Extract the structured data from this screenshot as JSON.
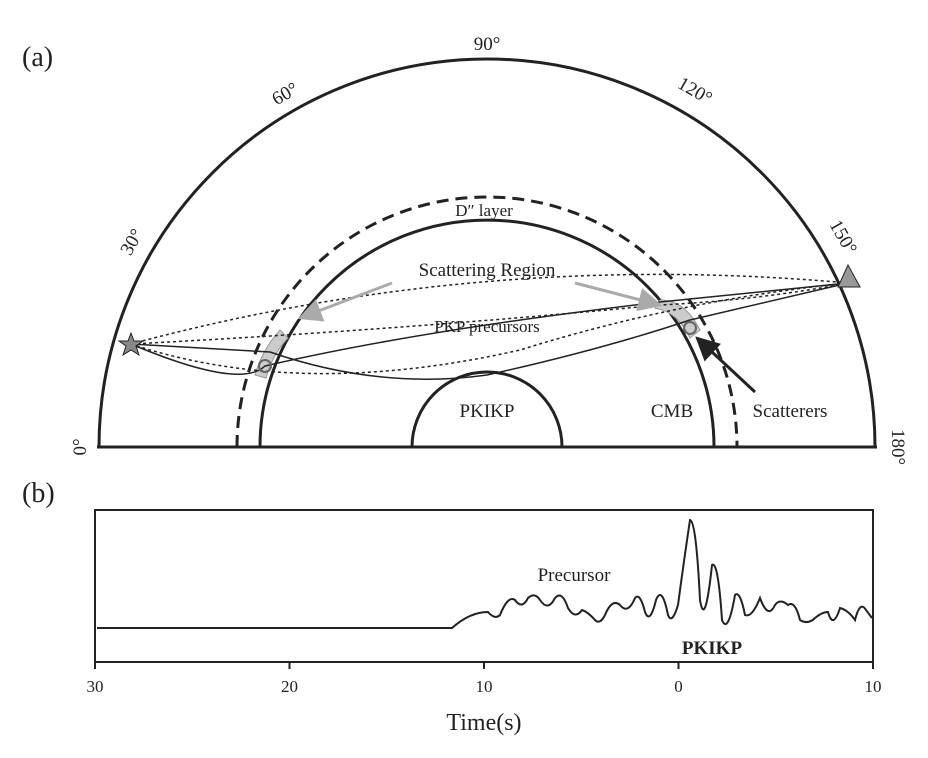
{
  "panel_a": {
    "label": "(a)",
    "degree_labels": [
      "0°",
      "30°",
      "60°",
      "90°",
      "120°",
      "150°",
      "180°"
    ],
    "d_layer": "D″ layer",
    "scattering_region": "Scattering Region",
    "pkp_precursors": "PKP precursors",
    "pkikp": "PKIKP",
    "cmb": "CMB",
    "scatterers": "Scatterers"
  },
  "panel_b": {
    "label": "(b)",
    "precursor": "Precursor",
    "pkikp": "PKIKP",
    "xlabel": "Time(s)",
    "xlim": [
      -30,
      10
    ],
    "xticks": [
      {
        "value": -30,
        "label": "30"
      },
      {
        "value": -20,
        "label": "20"
      },
      {
        "value": -10,
        "label": "10"
      },
      0,
      10
    ]
  }
}
